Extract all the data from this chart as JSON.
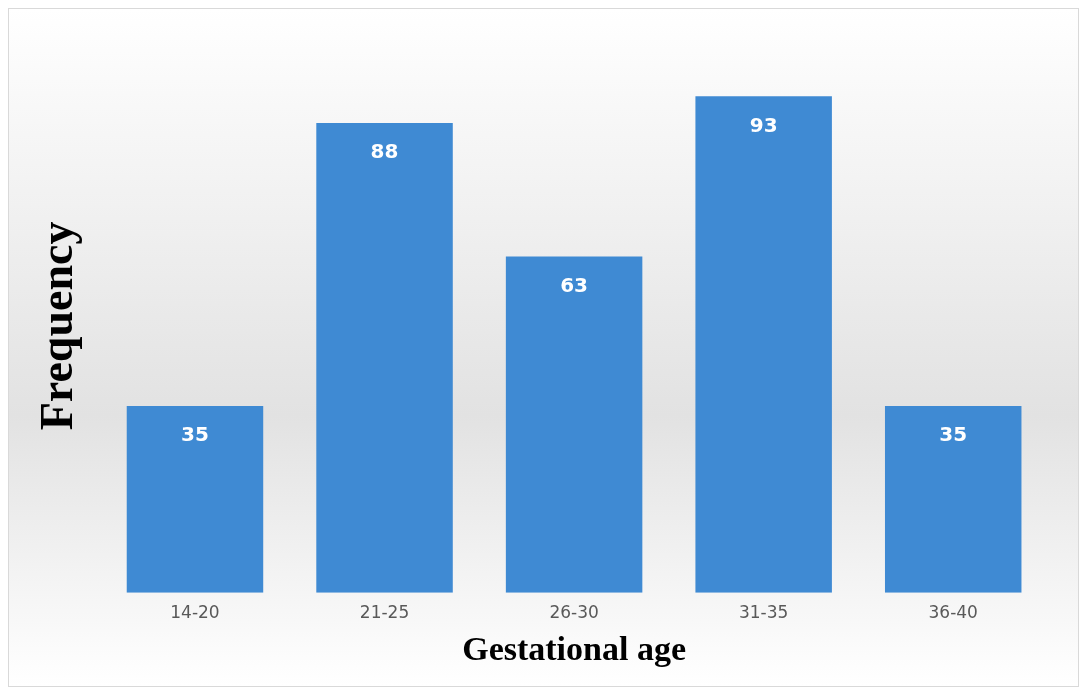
{
  "chart_data": {
    "type": "bar",
    "xlabel": "Gestational age",
    "ylabel": "Frequency",
    "categories": [
      "14-20",
      "21-25",
      "26-30",
      "31-35",
      "36-40"
    ],
    "values": [
      35,
      88,
      63,
      93,
      35
    ],
    "color": "#3f8ad3",
    "data_labels": true,
    "grid": false,
    "legend": false
  }
}
